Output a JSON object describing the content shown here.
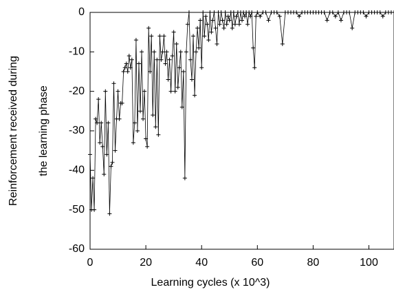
{
  "chart_data": {
    "type": "line",
    "xlabel": "Learning cycles (x 10^3)",
    "ylabel": [
      "Reinforcement received during",
      "the learning phase"
    ],
    "xlim": [
      0,
      109
    ],
    "ylim": [
      -60,
      0
    ],
    "xticks": [
      0,
      20,
      40,
      60,
      80,
      100
    ],
    "yticks": [
      -60,
      -50,
      -40,
      -30,
      -20,
      -10,
      0
    ],
    "marker": "+",
    "series": [
      {
        "color": "#000000",
        "x": [
          0,
          0.5,
          1,
          1.5,
          2,
          2.5,
          3,
          3.5,
          4,
          4.5,
          5,
          5.5,
          6,
          6.5,
          7,
          7.5,
          8,
          8.5,
          9,
          9.5,
          10,
          10.5,
          11,
          11.5,
          12,
          12.5,
          13,
          13.5,
          14,
          14.5,
          15,
          15.5,
          16,
          16.5,
          17,
          17.5,
          18,
          18.5,
          19,
          19.5,
          20,
          20.5,
          21,
          21.5,
          22,
          22.5,
          23,
          23.5,
          24,
          24.5,
          25,
          25.5,
          26,
          26.5,
          27,
          27.5,
          28,
          28.5,
          29,
          29.5,
          30,
          30.5,
          31,
          31.5,
          32,
          32.5,
          33,
          33.5,
          34,
          34.5,
          35,
          35.5,
          36,
          36.5,
          37,
          37.5,
          38,
          38.5,
          39,
          39.5,
          40,
          40.5,
          41,
          41.5,
          42,
          42.5,
          43,
          43.5,
          44,
          44.5,
          45,
          45.5,
          46,
          46.5,
          47,
          47.5,
          48,
          48.5,
          49,
          49.5,
          50,
          50.5,
          51,
          51.5,
          52,
          52.5,
          53,
          53.5,
          54,
          54.5,
          55,
          55.5,
          56,
          56.5,
          57,
          57.5,
          58,
          58.5,
          59,
          59.5,
          60,
          61,
          62,
          63,
          64,
          65,
          66,
          67,
          68,
          69,
          70,
          71,
          72,
          73,
          74,
          75,
          76,
          77,
          78,
          79,
          80,
          81,
          82,
          83,
          84,
          85,
          86,
          87,
          88,
          89,
          90,
          91,
          92,
          93,
          94,
          95,
          96,
          97,
          98,
          99,
          100,
          101,
          102,
          103,
          104,
          105,
          106,
          107,
          108,
          109
        ],
        "values": [
          -36,
          -50,
          -42,
          -50,
          -27,
          -28,
          -22,
          -33,
          -28,
          -34,
          -41,
          -20,
          -36,
          -28,
          -51,
          -39,
          -38,
          -18,
          -35,
          -27,
          -20,
          -27,
          -23,
          -23,
          -15,
          -14,
          -13,
          -15,
          -11,
          -14,
          -12,
          -33,
          -28,
          -7,
          -30,
          -13,
          -25,
          -10,
          -27,
          -20,
          -32,
          -34,
          -4,
          -15,
          -6,
          -26,
          -10,
          -29,
          -12,
          -31,
          -6,
          -12,
          -10,
          -6,
          -13,
          -10,
          -17,
          -12,
          -20,
          -11,
          -5,
          -20,
          -8,
          -19,
          -14,
          -10,
          -24,
          -15,
          -42,
          -10,
          -3,
          0,
          -12,
          -17,
          -6,
          -21,
          -10,
          -4,
          -9,
          -2,
          -14,
          0,
          -6,
          -1,
          -3,
          -7,
          0,
          -5,
          -2,
          0,
          -4,
          -8,
          0,
          -3,
          0,
          -2,
          -4,
          0,
          -3,
          -1,
          -2,
          0,
          -4,
          0,
          -3,
          -1,
          0,
          -3,
          0,
          -2,
          0,
          -1,
          0,
          -3,
          0,
          -1,
          0,
          -9,
          -14,
          -1,
          0,
          -1,
          0,
          0,
          -2,
          0,
          0,
          0,
          -1,
          -8,
          0,
          0,
          0,
          0,
          0,
          -1,
          0,
          0,
          0,
          0,
          0,
          0,
          0,
          0,
          0,
          -2,
          0,
          0,
          -1,
          0,
          -2,
          0,
          0,
          0,
          -4,
          0,
          0,
          0,
          0,
          -1,
          0,
          0,
          0,
          0,
          0,
          -1,
          0,
          0,
          0,
          0
        ]
      }
    ]
  }
}
